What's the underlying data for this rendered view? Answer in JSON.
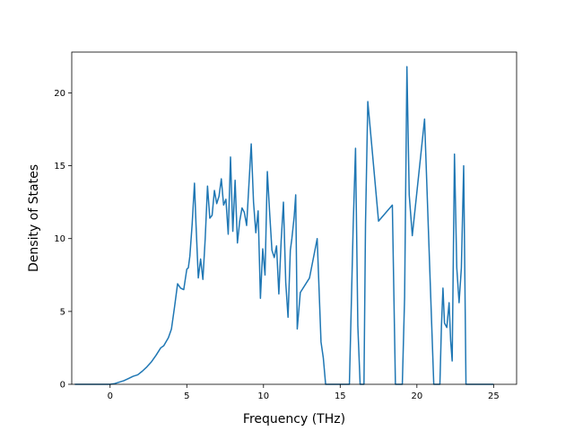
{
  "chart_data": {
    "type": "line",
    "title": "",
    "xlabel": "Frequency (THz)",
    "ylabel": "Density of States",
    "xlim": [
      -2.5,
      26.5
    ],
    "ylim": [
      0,
      22.8
    ],
    "xticks": [
      0,
      5,
      10,
      15,
      20,
      25
    ],
    "yticks": [
      0,
      5,
      10,
      15,
      20
    ],
    "grid": false,
    "legend": "none",
    "series": [
      {
        "color": "#1f77b4",
        "x": [
          -2.3,
          -1.5,
          -1.0,
          -0.5,
          0.0,
          0.3,
          0.6,
          0.9,
          1.2,
          1.5,
          1.8,
          2.1,
          2.4,
          2.7,
          3.0,
          3.3,
          3.5,
          3.8,
          4.0,
          4.2,
          4.4,
          4.6,
          4.8,
          5.0,
          5.1,
          5.2,
          5.35,
          5.5,
          5.6,
          5.75,
          5.9,
          6.05,
          6.2,
          6.35,
          6.5,
          6.65,
          6.8,
          6.95,
          7.1,
          7.25,
          7.4,
          7.55,
          7.7,
          7.85,
          8.0,
          8.15,
          8.3,
          8.45,
          8.6,
          8.75,
          8.9,
          9.05,
          9.2,
          9.35,
          9.5,
          9.65,
          9.8,
          9.95,
          10.1,
          10.25,
          10.4,
          10.55,
          10.7,
          10.85,
          11.0,
          11.15,
          11.3,
          11.45,
          11.6,
          11.75,
          11.85,
          12.0,
          12.1,
          12.2,
          12.4,
          13.0,
          13.5,
          13.75,
          13.9,
          14.05,
          14.2,
          15.0,
          15.6,
          15.85,
          16.0,
          16.15,
          16.3,
          16.45,
          16.55,
          16.65,
          16.8,
          17.5,
          18.4,
          18.6,
          18.75,
          18.9,
          19.05,
          19.2,
          19.35,
          19.5,
          19.7,
          20.5,
          21.1,
          21.25,
          21.4,
          21.5,
          21.6,
          21.7,
          21.8,
          21.95,
          22.1,
          22.2,
          22.3,
          22.45,
          22.6,
          22.75,
          22.9,
          23.05,
          23.2,
          24.0,
          25.0
        ],
        "y": [
          0,
          0,
          0,
          0,
          0,
          0.05,
          0.15,
          0.25,
          0.4,
          0.55,
          0.65,
          0.9,
          1.2,
          1.55,
          2.0,
          2.5,
          2.65,
          3.2,
          3.8,
          5.3,
          6.9,
          6.6,
          6.5,
          7.9,
          8.0,
          8.8,
          11.0,
          13.8,
          11.0,
          7.3,
          8.6,
          7.2,
          10.0,
          13.6,
          11.4,
          11.6,
          13.3,
          12.4,
          12.9,
          14.1,
          12.3,
          12.7,
          10.3,
          15.6,
          10.5,
          14.0,
          9.7,
          11.2,
          12.1,
          11.8,
          10.9,
          13.7,
          16.5,
          12.5,
          10.4,
          11.9,
          5.9,
          9.3,
          7.5,
          14.6,
          11.8,
          9.2,
          8.7,
          9.5,
          6.2,
          9.8,
          12.5,
          7.0,
          4.6,
          9.2,
          10.0,
          11.5,
          13.0,
          3.8,
          6.3,
          7.3,
          10.0,
          2.9,
          1.8,
          0,
          0,
          0,
          0,
          11.0,
          16.2,
          4.0,
          0,
          0,
          0,
          11.0,
          19.4,
          11.2,
          12.3,
          0,
          0,
          0,
          0,
          6.0,
          21.8,
          13.0,
          10.2,
          18.2,
          0,
          0,
          0,
          0,
          4.0,
          6.6,
          4.2,
          3.9,
          5.6,
          3.0,
          1.6,
          15.8,
          8.0,
          5.6,
          8.0,
          15.0,
          0,
          0,
          0
        ]
      }
    ]
  }
}
